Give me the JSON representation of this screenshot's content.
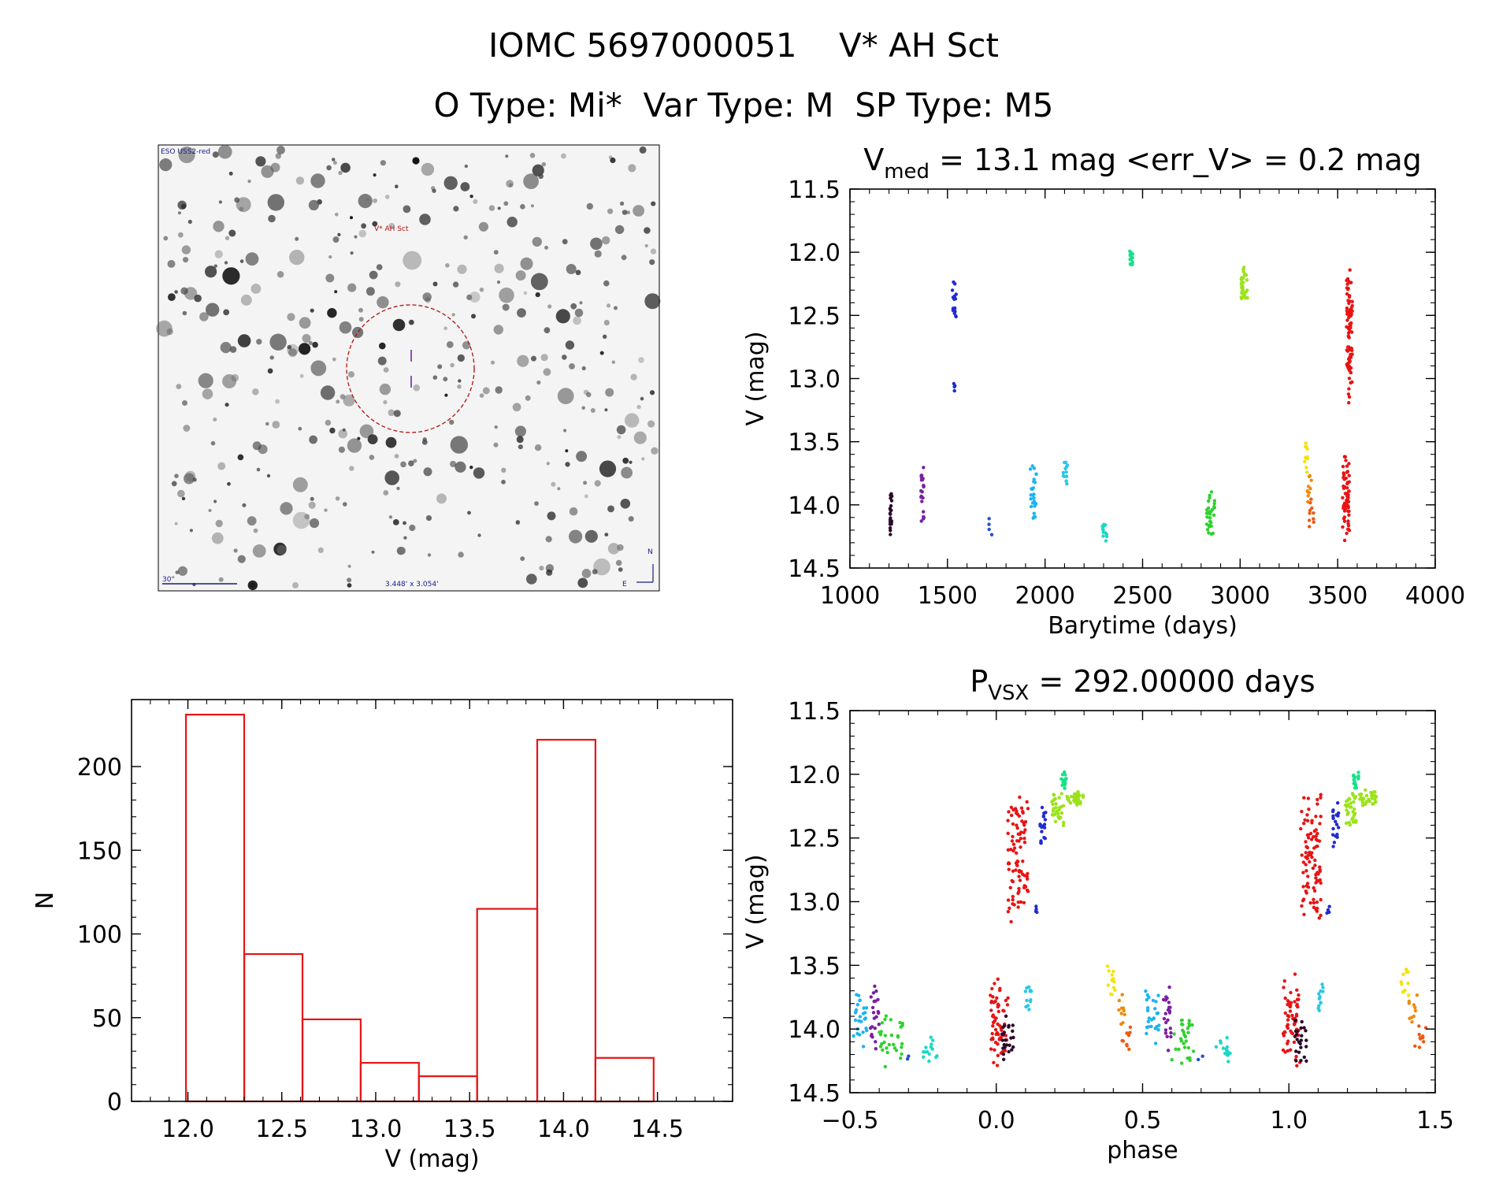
{
  "header": {
    "title": "IOMC 5697000051    V* AH Sct",
    "subtitle": "O Type: Mi*  Var Type: M  SP Type: M5"
  },
  "finder": {
    "survey_label": "ESO USS2-red",
    "target_label": "V* AH Sct",
    "scale_label": "30\"",
    "fov_label": "3.448' x 3.054'",
    "north_label": "N",
    "east_label": "E"
  },
  "chart_data": [
    {
      "id": "lightcurve",
      "type": "scatter",
      "title_main": "V",
      "title_sub": "med",
      "title_rest": " = 13.1 mag <err_V> = 0.2 mag",
      "xlabel": "Barytime (days)",
      "ylabel": "V (mag)",
      "xlim": [
        1000,
        4000
      ],
      "ylim": [
        14.5,
        11.5
      ],
      "y_inverted": true,
      "xticks": [
        1000,
        1500,
        2000,
        2500,
        3000,
        3500,
        4000
      ],
      "yticks": [
        11.5,
        12.0,
        12.5,
        13.0,
        13.5,
        14.0,
        14.5
      ],
      "series": [
        {
          "color": "#2b0a2b",
          "x": [
            1205,
            1215
          ],
          "y": [
            13.87,
            14.28
          ],
          "n": 24
        },
        {
          "color": "#7b1fa2",
          "x": [
            1360,
            1380
          ],
          "y": [
            13.64,
            14.17
          ],
          "n": 22
        },
        {
          "color": "#1f2ad6",
          "x": [
            1525,
            1545
          ],
          "y": [
            12.22,
            12.58
          ],
          "n": 18
        },
        {
          "color": "#1f2ad6",
          "x": [
            1530,
            1538
          ],
          "y": [
            13.03,
            13.1
          ],
          "n": 4
        },
        {
          "color": "#1f4fd6",
          "x": [
            1700,
            1740
          ],
          "y": [
            14.06,
            14.25
          ],
          "n": 4
        },
        {
          "color": "#1cb4f0",
          "x": [
            1925,
            1955
          ],
          "y": [
            13.66,
            14.15
          ],
          "n": 26
        },
        {
          "color": "#29c7e8",
          "x": [
            2090,
            2115
          ],
          "y": [
            13.62,
            13.88
          ],
          "n": 12
        },
        {
          "color": "#19d9c6",
          "x": [
            2290,
            2320
          ],
          "y": [
            14.1,
            14.3
          ],
          "n": 14
        },
        {
          "color": "#19e08a",
          "x": [
            2425,
            2450
          ],
          "y": [
            11.98,
            12.12
          ],
          "n": 14
        },
        {
          "color": "#2fd12f",
          "x": [
            2825,
            2870
          ],
          "y": [
            13.86,
            14.3
          ],
          "n": 30
        },
        {
          "color": "#9be31a",
          "x": [
            3005,
            3040
          ],
          "y": [
            12.12,
            12.42
          ],
          "n": 30
        },
        {
          "color": "#f5e20c",
          "x": [
            3330,
            3345
          ],
          "y": [
            13.48,
            13.77
          ],
          "n": 12
        },
        {
          "color": "#f08a0c",
          "x": [
            3345,
            3365
          ],
          "y": [
            13.72,
            13.98
          ],
          "n": 10
        },
        {
          "color": "#ee5a12",
          "x": [
            3350,
            3380
          ],
          "y": [
            13.95,
            14.19
          ],
          "n": 10
        },
        {
          "color": "#e81414",
          "x": [
            3525,
            3560
          ],
          "y": [
            13.55,
            14.32
          ],
          "n": 60
        },
        {
          "color": "#e81414",
          "x": [
            3545,
            3575
          ],
          "y": [
            12.08,
            13.25
          ],
          "n": 90
        }
      ]
    },
    {
      "id": "histogram",
      "type": "bar",
      "xlabel": "V (mag)",
      "ylabel": "N",
      "xlim": [
        11.7,
        14.9
      ],
      "ylim": [
        0,
        240
      ],
      "xticks": [
        12.0,
        12.5,
        13.0,
        13.5,
        14.0,
        14.5
      ],
      "yticks": [
        0,
        50,
        100,
        150,
        200
      ],
      "bin_edges": [
        11.99,
        12.3,
        12.61,
        12.92,
        13.23,
        13.54,
        13.86,
        14.17,
        14.48
      ],
      "counts": [
        231,
        88,
        49,
        23,
        15,
        115,
        216,
        26
      ],
      "color": "#e81414"
    },
    {
      "id": "phased",
      "type": "scatter",
      "title_main": "P",
      "title_sub": "VSX",
      "title_rest": " = 292.00000 days",
      "xlabel": "phase",
      "ylabel": "V (mag)",
      "xlim": [
        -0.5,
        1.5
      ],
      "ylim": [
        14.5,
        11.5
      ],
      "y_inverted": true,
      "xticks": [
        -0.5,
        0.0,
        0.5,
        1.0,
        1.5
      ],
      "xtick_labels": [
        "−0.5",
        "0.0",
        "0.5",
        "1.0",
        "1.5"
      ],
      "yticks": [
        11.5,
        12.0,
        12.5,
        13.0,
        13.5,
        14.0,
        14.5
      ],
      "series": [
        {
          "color": "#1cb4f0",
          "x": [
            -0.49,
            -0.44
          ],
          "y": [
            13.66,
            14.15
          ],
          "n": 26
        },
        {
          "color": "#7b1fa2",
          "x": [
            -0.43,
            -0.4
          ],
          "y": [
            13.64,
            14.17
          ],
          "n": 22
        },
        {
          "color": "#2fd12f",
          "x": [
            -0.4,
            -0.32
          ],
          "y": [
            13.86,
            14.3
          ],
          "n": 30
        },
        {
          "color": "#1f4fd6",
          "x": [
            -0.31,
            -0.29
          ],
          "y": [
            14.2,
            14.25
          ],
          "n": 2
        },
        {
          "color": "#19d9c6",
          "x": [
            -0.25,
            -0.2
          ],
          "y": [
            14.05,
            14.28
          ],
          "n": 14
        },
        {
          "color": "#e81414",
          "x": [
            -0.02,
            0.04
          ],
          "y": [
            13.55,
            14.32
          ],
          "n": 60
        },
        {
          "color": "#2b0a2b",
          "x": [
            0.02,
            0.06
          ],
          "y": [
            13.87,
            14.28
          ],
          "n": 24
        },
        {
          "color": "#e81414",
          "x": [
            0.04,
            0.11
          ],
          "y": [
            12.08,
            13.25
          ],
          "n": 90
        },
        {
          "color": "#29c7e8",
          "x": [
            0.1,
            0.12
          ],
          "y": [
            13.62,
            13.88
          ],
          "n": 12
        },
        {
          "color": "#1f2ad6",
          "x": [
            0.15,
            0.17
          ],
          "y": [
            12.22,
            12.58
          ],
          "n": 18
        },
        {
          "color": "#1f2ad6",
          "x": [
            0.13,
            0.14
          ],
          "y": [
            13.03,
            13.1
          ],
          "n": 4
        },
        {
          "color": "#9be31a",
          "x": [
            0.19,
            0.23
          ],
          "y": [
            12.12,
            12.42
          ],
          "n": 30
        },
        {
          "color": "#19e08a",
          "x": [
            0.22,
            0.24
          ],
          "y": [
            11.98,
            12.12
          ],
          "n": 14
        },
        {
          "color": "#9be31a",
          "x": [
            0.24,
            0.3
          ],
          "y": [
            12.12,
            12.26
          ],
          "n": 30
        },
        {
          "color": "#f5e20c",
          "x": [
            0.38,
            0.41
          ],
          "y": [
            13.48,
            13.77
          ],
          "n": 12
        },
        {
          "color": "#f08a0c",
          "x": [
            0.41,
            0.44
          ],
          "y": [
            13.72,
            13.98
          ],
          "n": 10
        },
        {
          "color": "#ee5a12",
          "x": [
            0.43,
            0.47
          ],
          "y": [
            13.95,
            14.19
          ],
          "n": 10
        },
        {
          "color": "#1cb4f0",
          "x": [
            0.51,
            0.56
          ],
          "y": [
            13.66,
            14.15
          ],
          "n": 26
        },
        {
          "color": "#7b1fa2",
          "x": [
            0.57,
            0.6
          ],
          "y": [
            13.64,
            14.17
          ],
          "n": 22
        },
        {
          "color": "#2fd12f",
          "x": [
            0.6,
            0.68
          ],
          "y": [
            13.86,
            14.3
          ],
          "n": 30
        },
        {
          "color": "#1f4fd6",
          "x": [
            0.69,
            0.71
          ],
          "y": [
            14.2,
            14.25
          ],
          "n": 2
        },
        {
          "color": "#19d9c6",
          "x": [
            0.75,
            0.8
          ],
          "y": [
            14.05,
            14.28
          ],
          "n": 14
        },
        {
          "color": "#e81414",
          "x": [
            0.98,
            1.04
          ],
          "y": [
            13.55,
            14.32
          ],
          "n": 60
        },
        {
          "color": "#2b0a2b",
          "x": [
            1.02,
            1.06
          ],
          "y": [
            13.87,
            14.28
          ],
          "n": 24
        },
        {
          "color": "#e81414",
          "x": [
            1.04,
            1.11
          ],
          "y": [
            12.08,
            13.25
          ],
          "n": 90
        },
        {
          "color": "#29c7e8",
          "x": [
            1.1,
            1.12
          ],
          "y": [
            13.62,
            13.88
          ],
          "n": 12
        },
        {
          "color": "#1f2ad6",
          "x": [
            1.15,
            1.17
          ],
          "y": [
            12.22,
            12.58
          ],
          "n": 18
        },
        {
          "color": "#1f2ad6",
          "x": [
            1.13,
            1.14
          ],
          "y": [
            13.03,
            13.1
          ],
          "n": 4
        },
        {
          "color": "#9be31a",
          "x": [
            1.19,
            1.23
          ],
          "y": [
            12.12,
            12.42
          ],
          "n": 30
        },
        {
          "color": "#19e08a",
          "x": [
            1.22,
            1.24
          ],
          "y": [
            11.98,
            12.12
          ],
          "n": 14
        },
        {
          "color": "#9be31a",
          "x": [
            1.24,
            1.3
          ],
          "y": [
            12.12,
            12.26
          ],
          "n": 30
        },
        {
          "color": "#f5e20c",
          "x": [
            1.38,
            1.41
          ],
          "y": [
            13.48,
            13.77
          ],
          "n": 12
        },
        {
          "color": "#f08a0c",
          "x": [
            1.41,
            1.44
          ],
          "y": [
            13.72,
            13.98
          ],
          "n": 10
        },
        {
          "color": "#ee5a12",
          "x": [
            1.43,
            1.47
          ],
          "y": [
            13.95,
            14.19
          ],
          "n": 10
        }
      ]
    }
  ]
}
